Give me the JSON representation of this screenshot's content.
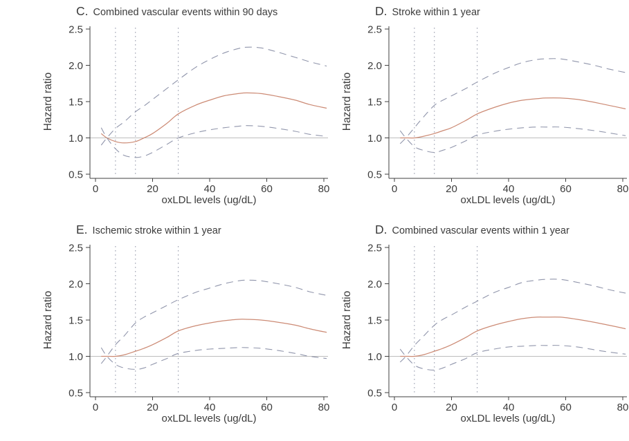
{
  "figure": {
    "background": "#ffffff",
    "colors": {
      "center_line": "#cc8a74",
      "ci_band": "#9095ab",
      "ref_vline": "#8f94a6",
      "unity_line": "#bcbcbc",
      "axis": "#3f3f3f",
      "text": "#3b3b3b"
    }
  },
  "chart_data": [
    {
      "type": "line",
      "title_letter": "C.",
      "title": "Combined vascular events within 90 days",
      "xlabel": "oxLDL levels (ug/dL)",
      "ylabel": "Hazard ratio",
      "xlim": [
        0,
        81
      ],
      "ylim": [
        0.5,
        2.5
      ],
      "xticks": [
        0,
        20,
        40,
        60,
        80
      ],
      "yticks": [
        "0.5",
        "1.0",
        "1.5",
        "2.0",
        "2.5"
      ],
      "ref_vlines": [
        7,
        14,
        29
      ],
      "ref_hline": 1.0,
      "grid": false,
      "legend": false,
      "x": [
        2,
        4,
        7,
        10,
        14,
        17,
        20,
        25,
        29,
        35,
        40,
        45,
        50,
        53,
        58,
        64,
        70,
        75,
        81
      ],
      "series": [
        {
          "name": "hazard-ratio",
          "style": "solid",
          "y": [
            1.06,
            1.0,
            0.95,
            0.93,
            0.95,
            1.0,
            1.06,
            1.2,
            1.33,
            1.45,
            1.52,
            1.58,
            1.61,
            1.62,
            1.61,
            1.57,
            1.52,
            1.46,
            1.41
          ]
        },
        {
          "name": "upper-95ci",
          "style": "dashed",
          "y": [
            0.9,
            1.0,
            1.13,
            1.22,
            1.36,
            1.44,
            1.53,
            1.68,
            1.8,
            1.97,
            2.08,
            2.17,
            2.23,
            2.25,
            2.24,
            2.18,
            2.11,
            2.05,
            1.99
          ]
        },
        {
          "name": "lower-95ci",
          "style": "dashed",
          "y": [
            1.14,
            1.0,
            0.85,
            0.76,
            0.73,
            0.75,
            0.8,
            0.91,
            1.0,
            1.07,
            1.11,
            1.14,
            1.16,
            1.17,
            1.16,
            1.13,
            1.09,
            1.05,
            1.02
          ]
        }
      ]
    },
    {
      "type": "line",
      "title_letter": "D.",
      "title": "Stroke within 1 year",
      "xlabel": "oxLDL levels (ug/dL)",
      "ylabel": "Hazard ratio",
      "xlim": [
        0,
        81
      ],
      "ylim": [
        0.5,
        2.5
      ],
      "xticks": [
        0,
        20,
        40,
        60,
        80
      ],
      "yticks": [
        "0.5",
        "1.0",
        "1.5",
        "2.0",
        "2.5"
      ],
      "ref_vlines": [
        7,
        14,
        29
      ],
      "ref_hline": 1.0,
      "grid": false,
      "legend": false,
      "x": [
        2,
        4,
        7,
        10,
        14,
        17,
        20,
        25,
        29,
        35,
        40,
        45,
        50,
        53,
        58,
        64,
        70,
        75,
        81
      ],
      "series": [
        {
          "name": "hazard-ratio",
          "style": "solid",
          "y": [
            1.0,
            1.0,
            1.0,
            1.02,
            1.06,
            1.1,
            1.14,
            1.24,
            1.33,
            1.42,
            1.48,
            1.52,
            1.54,
            1.55,
            1.55,
            1.53,
            1.49,
            1.45,
            1.4
          ]
        },
        {
          "name": "upper-95ci",
          "style": "dashed",
          "y": [
            0.92,
            1.0,
            1.14,
            1.28,
            1.45,
            1.52,
            1.58,
            1.68,
            1.77,
            1.89,
            1.97,
            2.04,
            2.08,
            2.09,
            2.09,
            2.05,
            2.0,
            1.95,
            1.9
          ]
        },
        {
          "name": "lower-95ci",
          "style": "dashed",
          "y": [
            1.1,
            1.0,
            0.88,
            0.83,
            0.8,
            0.83,
            0.87,
            0.96,
            1.04,
            1.09,
            1.12,
            1.14,
            1.15,
            1.15,
            1.15,
            1.13,
            1.1,
            1.07,
            1.03
          ]
        }
      ]
    },
    {
      "type": "line",
      "title_letter": "E.",
      "title": "Ischemic stroke within 1 year",
      "xlabel": "oxLDL levels (ug/dL)",
      "ylabel": "Hazard ratio",
      "xlim": [
        0,
        81
      ],
      "ylim": [
        0.5,
        2.5
      ],
      "xticks": [
        0,
        20,
        40,
        60,
        80
      ],
      "yticks": [
        "0.5",
        "1.0",
        "1.5",
        "2.0",
        "2.5"
      ],
      "ref_vlines": [
        7,
        14,
        29
      ],
      "ref_hline": 1.0,
      "grid": false,
      "legend": false,
      "x": [
        2,
        4,
        7,
        10,
        14,
        17,
        20,
        25,
        29,
        35,
        40,
        45,
        50,
        53,
        58,
        64,
        70,
        75,
        81
      ],
      "series": [
        {
          "name": "hazard-ratio",
          "style": "solid",
          "y": [
            1.0,
            1.0,
            1.0,
            1.02,
            1.07,
            1.11,
            1.16,
            1.26,
            1.35,
            1.42,
            1.46,
            1.49,
            1.51,
            1.51,
            1.5,
            1.47,
            1.43,
            1.38,
            1.33
          ]
        },
        {
          "name": "upper-95ci",
          "style": "dashed",
          "y": [
            0.9,
            1.0,
            1.16,
            1.28,
            1.46,
            1.54,
            1.6,
            1.7,
            1.78,
            1.88,
            1.94,
            2.0,
            2.04,
            2.05,
            2.04,
            2.0,
            1.95,
            1.89,
            1.84
          ]
        },
        {
          "name": "lower-95ci",
          "style": "dashed",
          "y": [
            1.12,
            1.0,
            0.89,
            0.84,
            0.82,
            0.84,
            0.89,
            0.97,
            1.04,
            1.08,
            1.1,
            1.11,
            1.12,
            1.12,
            1.11,
            1.08,
            1.04,
            1.0,
            0.97
          ]
        }
      ]
    },
    {
      "type": "line",
      "title_letter": "D.",
      "title": "Combined vascular events within 1 year",
      "xlabel": "oxLDL levels (ug/dL)",
      "ylabel": "Hazard ratio",
      "xlim": [
        0,
        81
      ],
      "ylim": [
        0.5,
        2.5
      ],
      "xticks": [
        0,
        20,
        40,
        60,
        80
      ],
      "yticks": [
        "0.5",
        "1.0",
        "1.5",
        "2.0",
        "2.5"
      ],
      "ref_vlines": [
        7,
        14,
        29
      ],
      "ref_hline": 1.0,
      "grid": false,
      "legend": false,
      "x": [
        2,
        4,
        7,
        10,
        14,
        17,
        20,
        25,
        29,
        35,
        40,
        45,
        50,
        53,
        58,
        64,
        70,
        75,
        81
      ],
      "series": [
        {
          "name": "hazard-ratio",
          "style": "solid",
          "y": [
            1.0,
            1.0,
            1.0,
            1.02,
            1.07,
            1.11,
            1.16,
            1.26,
            1.35,
            1.43,
            1.48,
            1.52,
            1.54,
            1.54,
            1.54,
            1.51,
            1.47,
            1.43,
            1.38
          ]
        },
        {
          "name": "upper-95ci",
          "style": "dashed",
          "y": [
            0.92,
            1.0,
            1.15,
            1.27,
            1.43,
            1.51,
            1.57,
            1.68,
            1.76,
            1.88,
            1.95,
            2.02,
            2.05,
            2.06,
            2.06,
            2.02,
            1.97,
            1.92,
            1.87
          ]
        },
        {
          "name": "lower-95ci",
          "style": "dashed",
          "y": [
            1.1,
            1.0,
            0.88,
            0.83,
            0.81,
            0.84,
            0.89,
            0.97,
            1.05,
            1.1,
            1.13,
            1.14,
            1.15,
            1.15,
            1.15,
            1.13,
            1.09,
            1.06,
            1.03
          ]
        }
      ]
    }
  ]
}
